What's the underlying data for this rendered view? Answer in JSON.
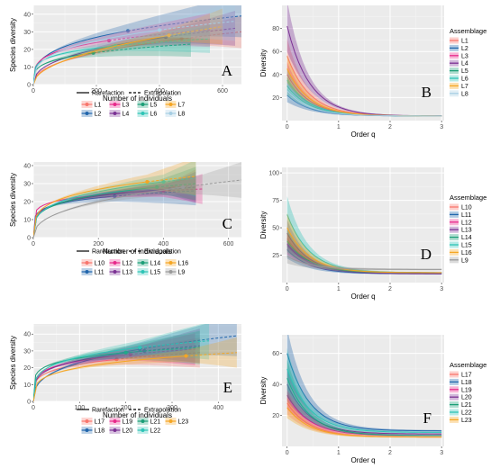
{
  "chart_data": [
    {
      "panel": "A",
      "type": "line",
      "subtype": "rarefaction-extrapolation",
      "xlabel": "Number of individuals",
      "ylabel": "Species diversity",
      "xlim": [
        0,
        660
      ],
      "ylim": [
        0,
        45
      ],
      "xticks": [
        0,
        200,
        400,
        600
      ],
      "yticks": [
        0,
        10,
        20,
        30,
        40
      ],
      "legend": [
        "Rarefaction",
        "Extrapolation"
      ],
      "series": [
        {
          "name": "L1",
          "color": "#f8766d",
          "observed": [
            470,
            26
          ],
          "end": [
            660,
            30
          ]
        },
        {
          "name": "L2",
          "color": "#2166ac",
          "observed": [
            300,
            30.5
          ],
          "end": [
            660,
            39
          ]
        },
        {
          "name": "L3",
          "color": "#e7298a",
          "observed": [
            240,
            25
          ],
          "end": [
            560,
            31
          ]
        },
        {
          "name": "L4",
          "color": "#7b3294",
          "observed": [
            420,
            27
          ],
          "end": [
            640,
            32
          ]
        },
        {
          "name": "L5",
          "color": "#1b9e77",
          "observed": [
            190,
            18
          ],
          "end": [
            500,
            23
          ]
        },
        {
          "name": "L6",
          "color": "#2ec4b6",
          "observed": [
            260,
            22
          ],
          "end": [
            560,
            26
          ]
        },
        {
          "name": "L7",
          "color": "#f5a623",
          "observed": [
            430,
            28
          ],
          "end": [
            600,
            33
          ]
        },
        {
          "name": "L8",
          "color": "#a6cee3",
          "observed": [
            400,
            31
          ],
          "end": [
            640,
            36
          ]
        }
      ]
    },
    {
      "panel": "B",
      "type": "line",
      "subtype": "hill-number-profile",
      "xlabel": "Order q",
      "ylabel": "Diversity",
      "xlim": [
        -0.1,
        3.05
      ],
      "ylim": [
        0,
        100
      ],
      "xticks": [
        0,
        1,
        2,
        3
      ],
      "yticks": [
        20,
        40,
        60,
        80
      ],
      "legend_title": "Assemblage",
      "series": [
        {
          "name": "L1",
          "color": "#f8766d",
          "q0": 56,
          "q3": 4
        },
        {
          "name": "L2",
          "color": "#2166ac",
          "q0": 22,
          "q3": 4
        },
        {
          "name": "L3",
          "color": "#e7298a",
          "q0": 40,
          "q3": 4
        },
        {
          "name": "L4",
          "color": "#7b3294",
          "q0": 82,
          "q3": 4
        },
        {
          "name": "L5",
          "color": "#1b9e77",
          "q0": 30,
          "q3": 4
        },
        {
          "name": "L6",
          "color": "#2ec4b6",
          "q0": 35,
          "q3": 4
        },
        {
          "name": "L7",
          "color": "#f5a623",
          "q0": 45,
          "q3": 4
        },
        {
          "name": "L8",
          "color": "#a6cee3",
          "q0": 26,
          "q3": 4
        }
      ]
    },
    {
      "panel": "C",
      "type": "line",
      "subtype": "rarefaction-extrapolation",
      "xlabel": "Number of individuals",
      "ylabel": "Species diversity",
      "xlim": [
        0,
        640
      ],
      "ylim": [
        0,
        42
      ],
      "xticks": [
        0,
        200,
        400,
        600
      ],
      "yticks": [
        0,
        10,
        20,
        30,
        40
      ],
      "legend": [
        "Rarefaction",
        "Extrapolation"
      ],
      "series": [
        {
          "name": "L10",
          "color": "#f8766d",
          "observed": [
            430,
            28
          ],
          "end": [
            500,
            29
          ]
        },
        {
          "name": "L11",
          "color": "#2166ac",
          "observed": [
            250,
            23
          ],
          "end": [
            500,
            26
          ]
        },
        {
          "name": "L12",
          "color": "#e7298a",
          "observed": [
            400,
            26
          ],
          "end": [
            520,
            27
          ]
        },
        {
          "name": "L13",
          "color": "#7b3294",
          "observed": [
            420,
            27
          ],
          "end": [
            500,
            28
          ]
        },
        {
          "name": "L14",
          "color": "#1b9e77",
          "observed": [
            380,
            28
          ],
          "end": [
            500,
            30
          ]
        },
        {
          "name": "L15",
          "color": "#2ec4b6",
          "observed": [
            400,
            31
          ],
          "end": [
            500,
            33
          ]
        },
        {
          "name": "L16",
          "color": "#f5a623",
          "observed": [
            350,
            31
          ],
          "end": [
            500,
            34
          ]
        },
        {
          "name": "L9",
          "color": "#999999",
          "observed": [
            460,
            28
          ],
          "end": [
            640,
            32
          ]
        }
      ]
    },
    {
      "panel": "D",
      "type": "line",
      "subtype": "hill-number-profile",
      "xlabel": "Order q",
      "ylabel": "Diversity",
      "xlim": [
        -0.1,
        3.05
      ],
      "ylim": [
        0,
        105
      ],
      "xticks": [
        0,
        1,
        2,
        3
      ],
      "yticks": [
        25,
        50,
        75,
        100
      ],
      "legend_title": "Assemblage",
      "series": [
        {
          "name": "L10",
          "color": "#f8766d",
          "q0": 40,
          "q3": 9
        },
        {
          "name": "L11",
          "color": "#2166ac",
          "q0": 30,
          "q3": 8
        },
        {
          "name": "L12",
          "color": "#e7298a",
          "q0": 35,
          "q3": 9
        },
        {
          "name": "L13",
          "color": "#7b3294",
          "q0": 45,
          "q3": 8
        },
        {
          "name": "L14",
          "color": "#1b9e77",
          "q0": 38,
          "q3": 9
        },
        {
          "name": "L15",
          "color": "#2ec4b6",
          "q0": 62,
          "q3": 9
        },
        {
          "name": "L16",
          "color": "#f5a623",
          "q0": 50,
          "q3": 9
        },
        {
          "name": "L9",
          "color": "#999999",
          "q0": 24,
          "q3": 12
        }
      ]
    },
    {
      "panel": "E",
      "type": "line",
      "subtype": "rarefaction-extrapolation",
      "xlabel": "Number of individuals",
      "ylabel": "Species diversity",
      "xlim": [
        0,
        450
      ],
      "ylim": [
        0,
        46
      ],
      "xticks": [
        0,
        100,
        200,
        300,
        400
      ],
      "yticks": [
        0,
        10,
        20,
        30,
        40
      ],
      "legend": [
        "Rarefaction",
        "Extrapolation"
      ],
      "series": [
        {
          "name": "L17",
          "color": "#f8766d",
          "observed": [
            180,
            25
          ],
          "end": [
            360,
            29
          ]
        },
        {
          "name": "L18",
          "color": "#2166ac",
          "observed": [
            230,
            31
          ],
          "end": [
            440,
            39
          ]
        },
        {
          "name": "L19",
          "color": "#e7298a",
          "observed": [
            210,
            28
          ],
          "end": [
            350,
            31
          ]
        },
        {
          "name": "L20",
          "color": "#7b3294",
          "observed": [
            240,
            30
          ],
          "end": [
            360,
            33
          ]
        },
        {
          "name": "L21",
          "color": "#1b9e77",
          "observed": [
            200,
            29
          ],
          "end": [
            360,
            32
          ]
        },
        {
          "name": "L22",
          "color": "#2ec4b6",
          "observed": [
            230,
            32
          ],
          "end": [
            380,
            36
          ]
        },
        {
          "name": "L23",
          "color": "#f5a623",
          "observed": [
            330,
            27
          ],
          "end": [
            440,
            29
          ]
        }
      ]
    },
    {
      "panel": "F",
      "type": "line",
      "subtype": "hill-number-profile",
      "xlabel": "Order q",
      "ylabel": "Diversity",
      "xlim": [
        -0.1,
        3.05
      ],
      "ylim": [
        0,
        72
      ],
      "xticks": [
        0,
        1,
        2,
        3
      ],
      "yticks": [
        20,
        40,
        60
      ],
      "legend_title": "Assemblage",
      "series": [
        {
          "name": "L17",
          "color": "#f8766d",
          "q0": 28,
          "q3": 6
        },
        {
          "name": "L18",
          "color": "#2166ac",
          "q0": 60,
          "q3": 10
        },
        {
          "name": "L19",
          "color": "#e7298a",
          "q0": 33,
          "q3": 7
        },
        {
          "name": "L20",
          "color": "#7b3294",
          "q0": 40,
          "q3": 8
        },
        {
          "name": "L21",
          "color": "#1b9e77",
          "q0": 44,
          "q3": 7
        },
        {
          "name": "L22",
          "color": "#2ec4b6",
          "q0": 50,
          "q3": 9
        },
        {
          "name": "L23",
          "color": "#f5a623",
          "q0": 25,
          "q3": 6
        }
      ]
    }
  ]
}
